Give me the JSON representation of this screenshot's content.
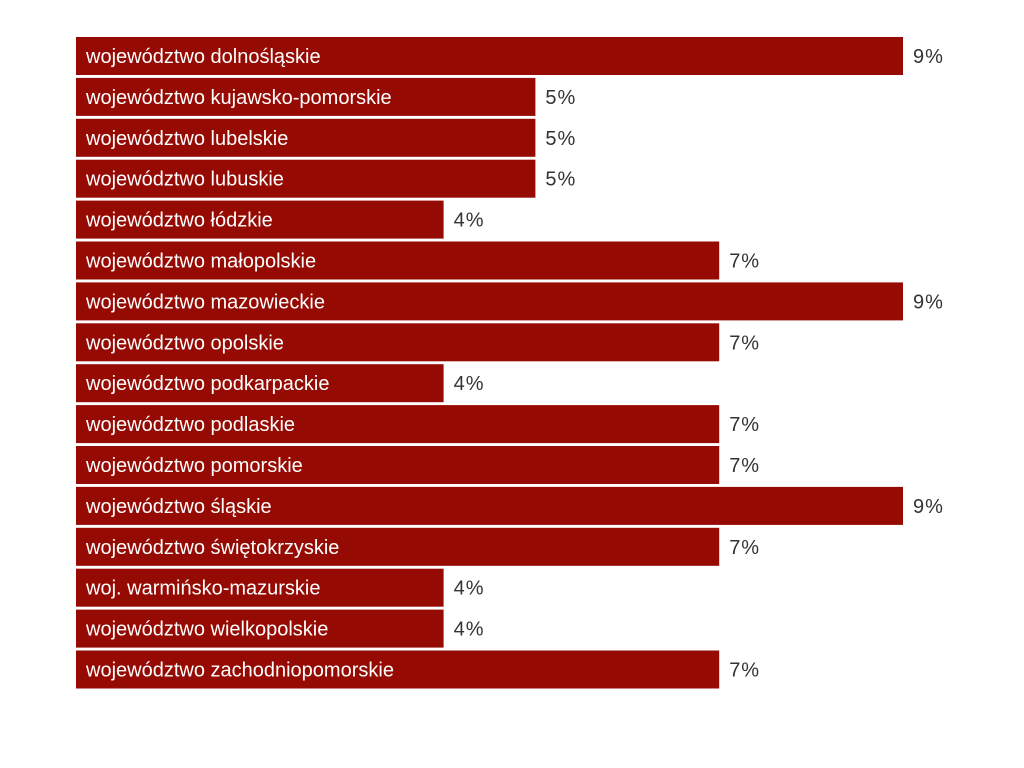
{
  "chart_data": {
    "type": "bar",
    "orientation": "horizontal",
    "categories": [
      "województwo dolnośląskie",
      "województwo kujawsko-pomorskie",
      "województwo lubelskie",
      "województwo lubuskie",
      "województwo łódzkie",
      "województwo małopolskie",
      "województwo mazowieckie",
      "województwo opolskie",
      "województwo podkarpackie",
      "województwo podlaskie",
      "województwo pomorskie",
      "województwo śląskie",
      "województwo świętokrzyskie",
      "woj. warmińsko-mazurskie",
      "województwo wielkopolskie",
      "województwo zachodniopomorskie"
    ],
    "values": [
      9,
      5,
      5,
      5,
      4,
      7,
      9,
      7,
      4,
      7,
      7,
      9,
      7,
      4,
      4,
      7
    ],
    "value_labels": [
      "9%",
      "5%",
      "5%",
      "5%",
      "4%",
      "7%",
      "9%",
      "7%",
      "4%",
      "7%",
      "7%",
      "9%",
      "7%",
      "4%",
      "4%",
      "7%"
    ],
    "unit": "%",
    "xlim": [
      0,
      9
    ],
    "bar_color": "#960A04",
    "label_color": "#FFFFFF",
    "value_label_color": "#333333",
    "grid": false,
    "legend": "none",
    "title": "",
    "xlabel": "",
    "ylabel": ""
  }
}
